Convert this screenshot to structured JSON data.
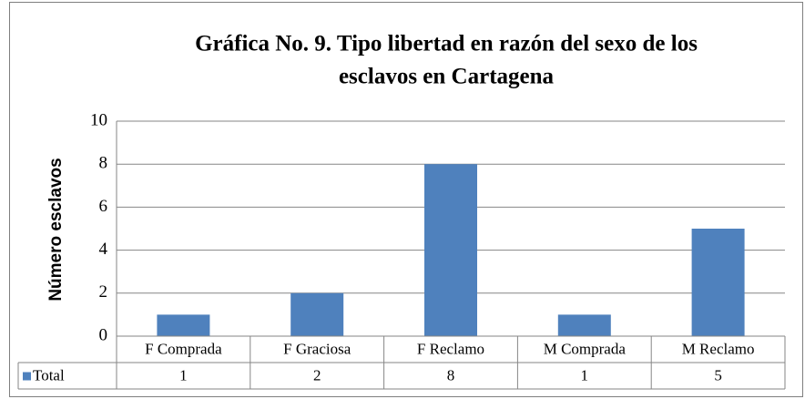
{
  "chart_data": {
    "type": "bar",
    "title": [
      "Gráfica No. 9. Tipo libertad en razón del sexo de los",
      "esclavos en Cartagena"
    ],
    "ylabel": "Número esclavos",
    "categories": [
      "F Comprada",
      "F Graciosa",
      "F Reclamo",
      "M Comprada",
      "M Reclamo"
    ],
    "series": [
      {
        "name": "Total",
        "color": "#4f81bd",
        "values": [
          1,
          2,
          8,
          1,
          5
        ]
      }
    ],
    "ylim": [
      0,
      10
    ],
    "yticks": [
      0,
      2,
      4,
      6,
      8,
      10
    ],
    "grid": true,
    "data_table": true
  }
}
